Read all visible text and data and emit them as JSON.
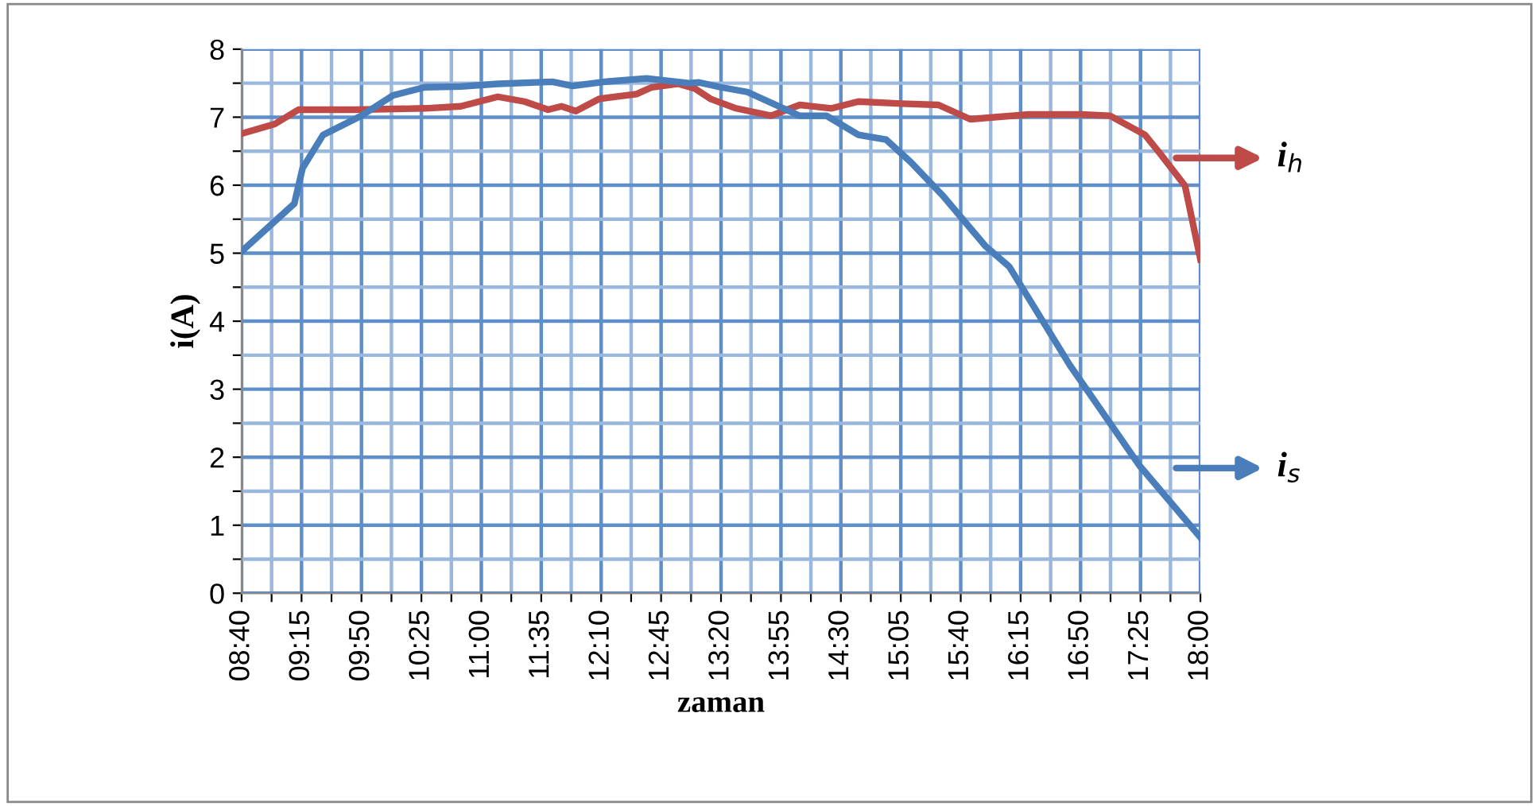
{
  "chart_data": {
    "type": "line",
    "xlabel": "zaman",
    "ylabel": "i(A)",
    "xlim": [
      8.6667,
      18
    ],
    "ylim": [
      0,
      8
    ],
    "xticks": [
      {
        "value": 8.6667,
        "label": "08:40"
      },
      {
        "value": 8.9583,
        "label": null
      },
      {
        "value": 9.25,
        "label": "09:15"
      },
      {
        "value": 9.5417,
        "label": null
      },
      {
        "value": 9.8333,
        "label": "09:50"
      },
      {
        "value": 10.125,
        "label": null
      },
      {
        "value": 10.4167,
        "label": "10:25"
      },
      {
        "value": 10.7083,
        "label": null
      },
      {
        "value": 11,
        "label": "11:00"
      },
      {
        "value": 11.2917,
        "label": null
      },
      {
        "value": 11.5833,
        "label": "11:35"
      },
      {
        "value": 11.875,
        "label": null
      },
      {
        "value": 12.1667,
        "label": "12:10"
      },
      {
        "value": 12.4583,
        "label": null
      },
      {
        "value": 12.75,
        "label": "12:45"
      },
      {
        "value": 13.0417,
        "label": null
      },
      {
        "value": 13.3333,
        "label": "13:20"
      },
      {
        "value": 13.625,
        "label": null
      },
      {
        "value": 13.9167,
        "label": "13:55"
      },
      {
        "value": 14.2083,
        "label": null
      },
      {
        "value": 14.5,
        "label": "14:30"
      },
      {
        "value": 14.7917,
        "label": null
      },
      {
        "value": 15.0833,
        "label": "15:05"
      },
      {
        "value": 15.375,
        "label": null
      },
      {
        "value": 15.6667,
        "label": "15:40"
      },
      {
        "value": 15.9583,
        "label": null
      },
      {
        "value": 16.25,
        "label": "16:15"
      },
      {
        "value": 16.5417,
        "label": null
      },
      {
        "value": 16.8333,
        "label": "16:50"
      },
      {
        "value": 17.125,
        "label": null
      },
      {
        "value": 17.4167,
        "label": "17:25"
      },
      {
        "value": 17.7083,
        "label": null
      },
      {
        "value": 18,
        "label": "18:00"
      }
    ],
    "yticks": [
      0,
      {
        "value": 0.5,
        "label": null
      },
      1,
      {
        "value": 1.5,
        "label": null
      },
      2,
      {
        "value": 2.5,
        "label": null
      },
      3,
      {
        "value": 3.5,
        "label": null
      },
      4,
      {
        "value": 4.5,
        "label": null
      },
      5,
      {
        "value": 5.5,
        "label": null
      },
      6,
      {
        "value": 6.5,
        "label": null
      },
      7,
      {
        "value": 7.5,
        "label": null
      },
      8
    ],
    "grid": true,
    "legend": "right",
    "marker": "none",
    "line_style": "solid",
    "series": [
      {
        "name": "i$_{h}$",
        "color": "#be4b48",
        "x": [
          8.67,
          8.99,
          9.22,
          9.77,
          10.45,
          10.8,
          11.16,
          11.42,
          11.65,
          11.78,
          11.92,
          12.15,
          12.51,
          12.66,
          12.92,
          13.08,
          13.23,
          13.48,
          13.82,
          14.1,
          14.41,
          14.67,
          15.09,
          15.45,
          15.76,
          16.33,
          16.84,
          17.12,
          17.46,
          17.61,
          17.85,
          18.0
        ],
        "values": [
          6.76,
          6.9,
          7.11,
          7.11,
          7.13,
          7.16,
          7.3,
          7.23,
          7.11,
          7.16,
          7.09,
          7.27,
          7.34,
          7.44,
          7.49,
          7.42,
          7.27,
          7.13,
          7.02,
          7.18,
          7.13,
          7.23,
          7.2,
          7.18,
          6.97,
          7.04,
          7.04,
          7.02,
          6.74,
          6.46,
          5.99,
          4.91
        ]
      },
      {
        "name": "i$_{s}$",
        "color": "#4a7ebb",
        "x": [
          8.67,
          9.18,
          9.26,
          9.46,
          9.83,
          10.14,
          10.45,
          10.8,
          11.16,
          11.69,
          11.89,
          12.2,
          12.61,
          13.02,
          13.12,
          13.33,
          13.59,
          14.1,
          14.36,
          14.67,
          14.94,
          15.18,
          15.49,
          15.91,
          16.14,
          16.73,
          17.41,
          18.0
        ],
        "values": [
          5.03,
          5.73,
          6.25,
          6.74,
          7.02,
          7.32,
          7.44,
          7.45,
          7.49,
          7.52,
          7.46,
          7.52,
          7.57,
          7.5,
          7.51,
          7.44,
          7.37,
          7.02,
          7.02,
          6.74,
          6.67,
          6.34,
          5.85,
          5.1,
          4.8,
          3.35,
          1.87,
          0.82
        ]
      }
    ]
  }
}
